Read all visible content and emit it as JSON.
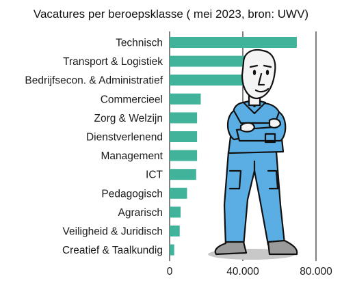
{
  "chart_data": {
    "type": "bar",
    "orientation": "horizontal",
    "title": "Vacatures per beroepsklasse ( mei 2023, bron: UWV)",
    "categories": [
      "Technisch",
      "Transport & Logistiek",
      "Bedrijfsecon. & Administratief",
      "Commercieel",
      "Zorg & Welzijn",
      "Dienstverlenend",
      "Management",
      "ICT",
      "Pedagogisch",
      "Agrarisch",
      "Veiligheid & Juridisch",
      "Creatief & Taalkundig"
    ],
    "values": [
      69500,
      43500,
      40500,
      17000,
      15000,
      15000,
      15000,
      14500,
      9500,
      6000,
      5500,
      2500
    ],
    "xlim": [
      0,
      80000
    ],
    "xticks": [
      0,
      40000,
      80000
    ],
    "xtick_labels": [
      "0",
      "40.000",
      "80.000"
    ],
    "grid": true,
    "legend": "none",
    "bar_color": "#41b39a",
    "grid_color": "#000000"
  },
  "illustration": {
    "name": "worker-figure",
    "colors": {
      "overall": "#5aaee3",
      "outline": "#111111",
      "shadow": "#c8c8c8",
      "shoes": "#9a9a9a",
      "skin": "#f4f4f4"
    }
  }
}
